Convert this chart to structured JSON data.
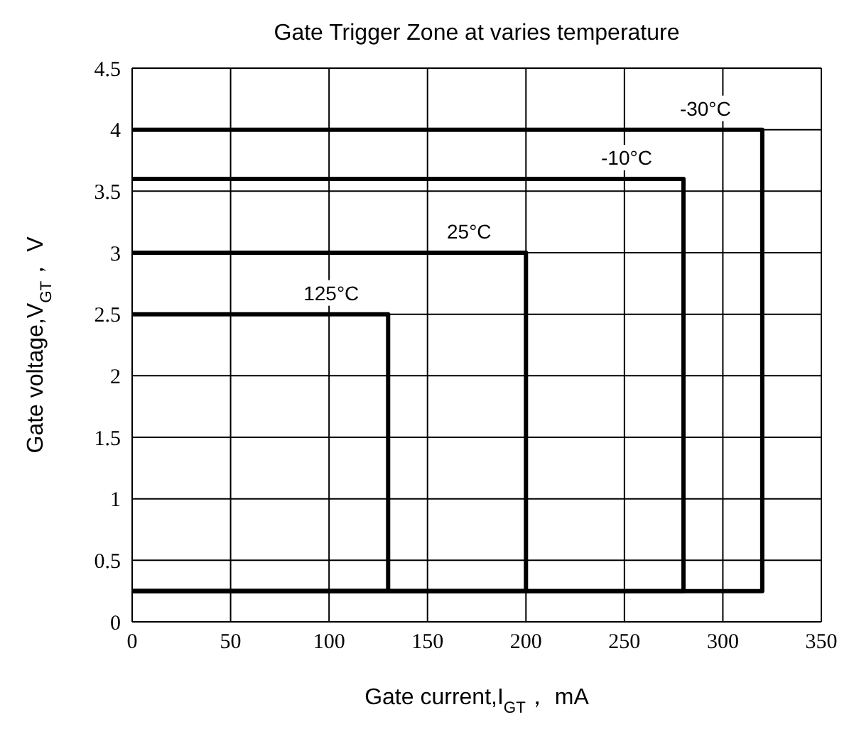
{
  "chart_data": {
    "type": "line",
    "title": "Gate Trigger Zone at varies temperature",
    "xlabel": "Gate current,I$_{GT}$， mA",
    "ylabel": "Gate voltage,V$_{GT}$， V",
    "series": [
      {
        "name": "-30°C",
        "color": "#000000",
        "x": [
          0,
          320,
          320,
          0
        ],
        "values": [
          4,
          4,
          0.25,
          0.25
        ]
      },
      {
        "name": "-10°C",
        "color": "#000000",
        "x": [
          0,
          280,
          280,
          0
        ],
        "values": [
          3.6,
          3.6,
          0.25,
          0.25
        ]
      },
      {
        "name": "25°C",
        "color": "#000000",
        "x": [
          0,
          200,
          200,
          0
        ],
        "values": [
          3,
          3,
          0.25,
          0.25
        ]
      },
      {
        "name": "125°C",
        "color": "#000000",
        "x": [
          0,
          130,
          130,
          0
        ],
        "values": [
          2.5,
          2.5,
          0.25,
          0.25
        ]
      }
    ],
    "xlim": [
      0,
      350
    ],
    "xticks": [
      0,
      50,
      100,
      150,
      200,
      250,
      300,
      350
    ],
    "ylim": [
      0,
      4.5
    ],
    "yticks": [
      0,
      0.5,
      1,
      1.5,
      2,
      2.5,
      3,
      3.5,
      4,
      4.5
    ],
    "grid": true,
    "marker": "none",
    "line_style": "solid"
  }
}
